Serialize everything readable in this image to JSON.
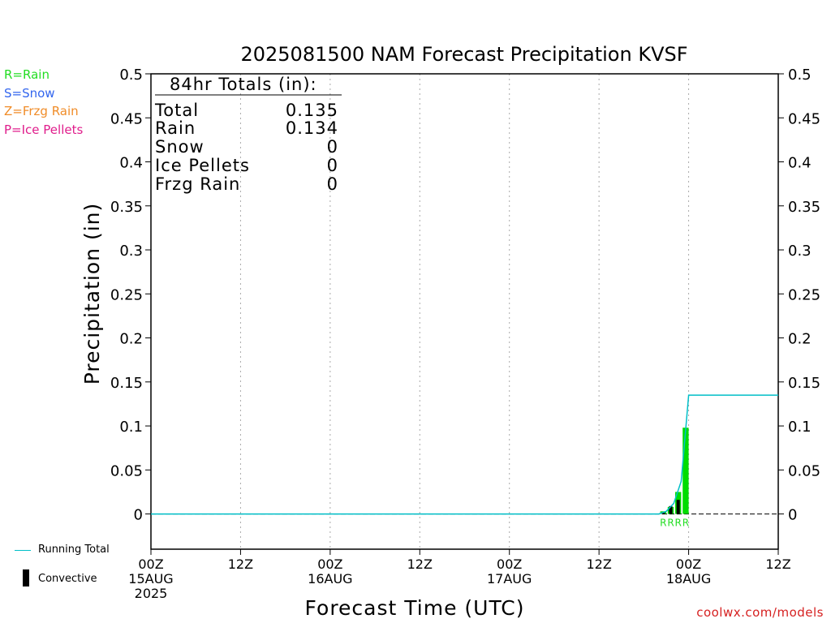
{
  "title": "2025081500 NAM Forecast Precipitation KVSF",
  "legend_types": [
    {
      "label": "R=Rain",
      "color": "#22dd22"
    },
    {
      "label": "S=Snow",
      "color": "#3366ee"
    },
    {
      "label": "Z=Frzg Rain",
      "color": "#f08c28"
    },
    {
      "label": "P=Ice Pellets",
      "color": "#e01e8c"
    }
  ],
  "bottom_legend": {
    "running_total_label": "Running Total",
    "convective_label": "Convective"
  },
  "credit": "coolwx.com/models",
  "totals_box": {
    "header": "84hr Totals (in):",
    "rows": [
      {
        "label": "Total",
        "value": "0.135"
      },
      {
        "label": "Rain",
        "value": "0.134"
      },
      {
        "label": "Snow",
        "value": "0"
      },
      {
        "label": "Ice Pellets",
        "value": "0"
      },
      {
        "label": "Frzg Rain",
        "value": "0"
      }
    ]
  },
  "chart_data": {
    "type": "bar",
    "title": "2025081500 NAM Forecast Precipitation KVSF",
    "xlabel": "Forecast Time (UTC)",
    "ylabel": "Precipitation (in)",
    "x_unit": "forecast hour",
    "xlim": [
      0,
      84
    ],
    "ylim": [
      -0.04,
      0.5
    ],
    "yticks": [
      0,
      0.05,
      0.1,
      0.15,
      0.2,
      0.25,
      0.3,
      0.35,
      0.4,
      0.45,
      0.5
    ],
    "ytick_labels": [
      "0",
      "0.05",
      "0.1",
      "0.15",
      "0.2",
      "0.25",
      "0.3",
      "0.35",
      "0.4",
      "0.45",
      "0.5"
    ],
    "xticks": [
      {
        "hour": 0,
        "lines": [
          "00Z",
          "15AUG",
          "2025"
        ]
      },
      {
        "hour": 12,
        "lines": [
          "12Z"
        ]
      },
      {
        "hour": 24,
        "lines": [
          "00Z",
          "16AUG"
        ]
      },
      {
        "hour": 36,
        "lines": [
          "12Z"
        ]
      },
      {
        "hour": 48,
        "lines": [
          "00Z",
          "17AUG"
        ]
      },
      {
        "hour": 60,
        "lines": [
          "12Z"
        ]
      },
      {
        "hour": 72,
        "lines": [
          "00Z",
          "18AUG"
        ]
      },
      {
        "hour": 84,
        "lines": [
          "12Z"
        ]
      }
    ],
    "grid": "vertical dotted at 12-hour ticks",
    "series": [
      {
        "name": "Rain",
        "color": "#00dd00",
        "points": [
          {
            "hour": 69,
            "value": 0.003
          },
          {
            "hour": 70,
            "value": 0.008
          },
          {
            "hour": 71,
            "value": 0.025
          },
          {
            "hour": 72,
            "value": 0.098
          }
        ]
      },
      {
        "name": "Convective",
        "color": "#000000",
        "points": [
          {
            "hour": 69,
            "value": 0.002
          },
          {
            "hour": 70,
            "value": 0.009
          },
          {
            "hour": 71,
            "value": 0.016
          },
          {
            "hour": 72,
            "value": 0.0
          }
        ]
      },
      {
        "name": "Running Total",
        "type": "line",
        "color": "#00bfc8",
        "points": [
          {
            "hour": 0,
            "value": 0
          },
          {
            "hour": 68,
            "value": 0
          },
          {
            "hour": 69,
            "value": 0.003
          },
          {
            "hour": 70,
            "value": 0.012
          },
          {
            "hour": 71,
            "value": 0.037
          },
          {
            "hour": 72,
            "value": 0.135
          },
          {
            "hour": 84,
            "value": 0.135
          }
        ]
      }
    ],
    "precip_type_markers": {
      "label": "R",
      "hours": [
        69,
        70,
        71,
        72
      ],
      "color": "#22dd22"
    }
  }
}
